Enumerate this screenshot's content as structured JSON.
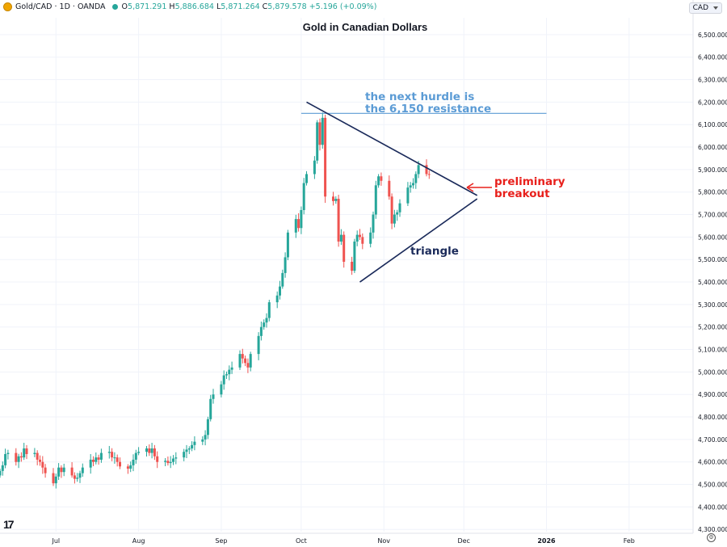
{
  "header": {
    "symbol": "Gold/CAD · 1D · OANDA",
    "open_label": "O",
    "open": "5,871.291",
    "high_label": "H",
    "high": "5,886.684",
    "low_label": "L",
    "low": "5,871.264",
    "close_label": "C",
    "close": "5,879.578",
    "change": "+5.196 (+0.09%)"
  },
  "currency_selector": "CAD",
  "colors": {
    "up": "#26a69a",
    "down": "#ef5350",
    "resistance": "#5b9bd5",
    "triangle": "#1a2a5a",
    "breakout": "#e8201c"
  },
  "chart_data": {
    "type": "candlestick",
    "title": "Gold in Canadian Dollars",
    "y_ticks": [
      "6,500.000",
      "6,400.000",
      "6,300.000",
      "6,200.000",
      "6,100.000",
      "6,000.000",
      "5,900.000",
      "5,800.000",
      "5,700.000",
      "5,600.000",
      "5,500.000",
      "5,400.000",
      "5,300.000",
      "5,200.000",
      "5,100.000",
      "5,000.000",
      "4,900.000",
      "4,800.000",
      "4,700.000",
      "4,600.000",
      "4,500.000",
      "4,400.000",
      "4,300.000"
    ],
    "x_ticks": [
      {
        "label": "Jul",
        "date": "2025-07-01"
      },
      {
        "label": "Aug",
        "date": "2025-08-01"
      },
      {
        "label": "Sep",
        "date": "2025-09-01"
      },
      {
        "label": "Oct",
        "date": "2025-10-01"
      },
      {
        "label": "Nov",
        "date": "2025-11-01"
      },
      {
        "label": "Dec",
        "date": "2025-12-01"
      },
      {
        "label": "2026",
        "date": "2026-01-01"
      },
      {
        "label": "Feb",
        "date": "2026-02-01"
      }
    ],
    "x_range": [
      "2025-06-10",
      "2026-02-25"
    ],
    "y_range": [
      4290,
      6575
    ],
    "grid": true,
    "closes": [
      4560,
      4585,
      4635,
      4640,
      4600,
      4625,
      4620,
      4660,
      4635,
      4640,
      4610,
      4600,
      4575,
      4550,
      4505,
      4535,
      4575,
      4555,
      4575,
      4540,
      4525,
      4530,
      4550,
      4575,
      4610,
      4600,
      4620,
      4610,
      4640,
      4645,
      4620,
      4620,
      4600,
      4580,
      4570,
      4585,
      4610,
      4640,
      4645,
      4660,
      4640,
      4660,
      4625,
      4600,
      4605,
      4595,
      4600,
      4615,
      4620,
      4645,
      4655,
      4660,
      4675,
      4690,
      4700,
      4720,
      4790,
      4880,
      4900,
      4945,
      4985,
      4990,
      5010,
      5020,
      5080,
      5060,
      5040,
      5020,
      5080,
      5160,
      5200,
      5220,
      5240,
      5310,
      5340,
      5380,
      5440,
      5510,
      5620,
      5680,
      5640,
      5720,
      5840,
      5880,
      5940,
      6110,
      6010,
      6130,
      5780,
      5760,
      5770,
      5580,
      5610,
      5490,
      5450,
      5580,
      5610,
      5600,
      5570,
      5620,
      5700,
      5830,
      5870,
      5850,
      5780,
      5660,
      5700,
      5710,
      5750,
      5820,
      5830,
      5840,
      5880,
      5920,
      5880,
      5879.578
    ]
  },
  "annotations": {
    "resistance_text_1": "the next hurdle is",
    "resistance_text_2": "the 6,150 resistance",
    "resistance_level": 6150,
    "triangle_label": "triangle",
    "breakout_text_1": "preliminary",
    "breakout_text_2": "breakout",
    "triangle_upper": [
      [
        "2025-10-03",
        6200
      ],
      [
        "2025-12-06",
        5785
      ]
    ],
    "triangle_lower": [
      [
        "2025-10-23",
        5400
      ],
      [
        "2025-12-06",
        5770
      ]
    ],
    "resistance_from": "2025-10-01",
    "resistance_to": "2026-01-01"
  },
  "footer": {
    "logo": "17",
    "settings_icon": "gear-icon"
  }
}
